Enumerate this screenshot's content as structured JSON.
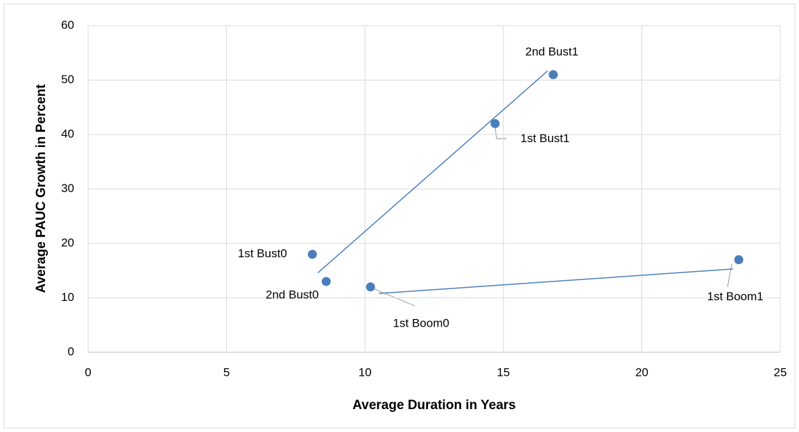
{
  "chart_data": {
    "type": "scatter",
    "xlabel": "Average Duration in Years",
    "ylabel": "Average PAUC Growth in Percent",
    "xlim": [
      0,
      25
    ],
    "xticks": [
      0,
      5,
      10,
      15,
      20,
      25
    ],
    "ylim": [
      0,
      60
    ],
    "yticks": [
      0,
      10,
      20,
      30,
      40,
      50,
      60
    ],
    "grid": true,
    "series": [
      {
        "color": "#4a7ebb",
        "x": [
          8.1,
          8.6,
          10.2,
          14.7,
          16.8,
          23.5
        ],
        "y": [
          18,
          13,
          12,
          42,
          51,
          17
        ],
        "labels": [
          "1st Bust0",
          "2nd Bust0",
          "1st Boom0",
          "1st Bust1",
          "2nd Bust1",
          "1st Boom1"
        ]
      }
    ],
    "lines": [
      {
        "color": "#4a7ebb",
        "x": [
          8.3,
          16.6
        ],
        "y": [
          14.6,
          51.7
        ]
      },
      {
        "color": "#4a7ebb",
        "x": [
          10.5,
          23.3
        ],
        "y": [
          10.8,
          15.3
        ]
      }
    ]
  }
}
